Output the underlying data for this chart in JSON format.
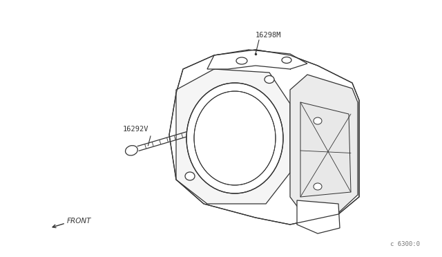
{
  "background_color": "#ffffff",
  "line_color": "#333333",
  "label_16298M": "16298M",
  "label_16292V": "16292V",
  "label_FRONT": "FRONT",
  "label_part_num": "c 6300:0",
  "fig_width": 6.4,
  "fig_height": 3.72,
  "dpi": 100
}
